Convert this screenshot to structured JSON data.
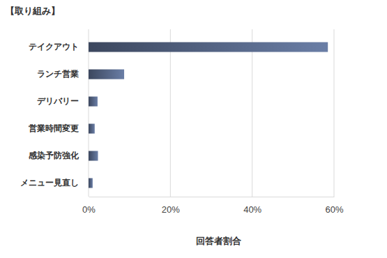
{
  "chart_data": {
    "type": "bar",
    "orientation": "horizontal",
    "title": "【取り組み】",
    "categories": [
      "テイクアウト",
      "ランチ営業",
      "デリバリー",
      "営業時間変更",
      "感染予防強化",
      "メニュー見直し"
    ],
    "values": [
      58.5,
      8.7,
      2.2,
      1.5,
      2.3,
      1.0
    ],
    "color": "#6a7ea6",
    "xlabel": "回答者割合",
    "xlim": [
      0,
      60
    ],
    "xticks": [
      {
        "value": 0,
        "label": "0%"
      },
      {
        "value": 20,
        "label": "20%"
      },
      {
        "value": 40,
        "label": "40%"
      },
      {
        "value": 60,
        "label": "60%"
      }
    ],
    "grid": true
  }
}
